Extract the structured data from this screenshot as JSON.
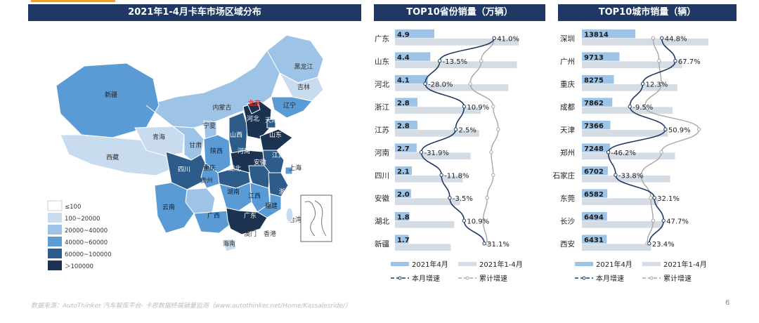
{
  "map_panel": {
    "title": "2021年1-4月卡车市场区域分布",
    "legend": [
      {
        "label": "≤100",
        "color": ""
      },
      {
        "label": "100~20000",
        "color": "#c9dcef"
      },
      {
        "label": "20000~40000",
        "color": "#9dc3e6"
      },
      {
        "label": "40000~60000",
        "color": "#5b9bd5"
      },
      {
        "label": "60000~100000",
        "color": "#2e5c8a"
      },
      {
        "label": "＞100000",
        "color": "#1b3350"
      }
    ],
    "regions": [
      {
        "name": "黑龙江",
        "tier": 2
      },
      {
        "name": "吉林",
        "tier": 1
      },
      {
        "name": "辽宁",
        "tier": 3
      },
      {
        "name": "内蒙古",
        "tier": 2
      },
      {
        "name": "新疆",
        "tier": 3
      },
      {
        "name": "西藏",
        "tier": 1
      },
      {
        "name": "青海",
        "tier": 1
      },
      {
        "name": "甘肃",
        "tier": 2
      },
      {
        "name": "宁夏",
        "tier": 2
      },
      {
        "name": "陕西",
        "tier": 3
      },
      {
        "name": "山西",
        "tier": 4
      },
      {
        "name": "河北",
        "tier": 5
      },
      {
        "name": "天津",
        "tier": 4
      },
      {
        "name": "山东",
        "tier": 5
      },
      {
        "name": "河南",
        "tier": 5
      },
      {
        "name": "江苏",
        "tier": 4
      },
      {
        "name": "安徽",
        "tier": 4
      },
      {
        "name": "湖北",
        "tier": 4
      },
      {
        "name": "四川",
        "tier": 4
      },
      {
        "name": "重庆",
        "tier": 3
      },
      {
        "name": "贵州",
        "tier": 2
      },
      {
        "name": "云南",
        "tier": 3
      },
      {
        "name": "广西",
        "tier": 3
      },
      {
        "name": "湖南",
        "tier": 3
      },
      {
        "name": "江西",
        "tier": 3
      },
      {
        "name": "浙江",
        "tier": 4
      },
      {
        "name": "福建",
        "tier": 3
      },
      {
        "name": "广东",
        "tier": 5
      },
      {
        "name": "海南",
        "tier": 1
      },
      {
        "name": "上海",
        "tier": 3
      },
      {
        "name": "北京",
        "tier": 5
      }
    ],
    "extra_labels": [
      "澳门",
      "香港",
      "台湾"
    ]
  },
  "chart_data": [
    {
      "type": "bar",
      "title": "TOP10省份销量（万辆）",
      "orientation": "horizontal",
      "categories": [
        "广东",
        "山东",
        "河北",
        "浙江",
        "江苏",
        "河南",
        "四川",
        "安徽",
        "湖北",
        "新疆"
      ],
      "series": [
        {
          "name": "2021年4月",
          "values": [
            4.9,
            4.4,
            4.1,
            2.8,
            2.8,
            2.7,
            2.1,
            2.0,
            1.8,
            1.7
          ],
          "color": "#9dc3e6"
        },
        {
          "name": "2021年1-4月",
          "values": [
            14.4,
            14.2,
            13.2,
            10.0,
            9.8,
            8.8,
            7.9,
            7.6,
            6.9,
            6.5
          ],
          "color": "#d6dce4"
        },
        {
          "name": "本月增速",
          "values": [
            41.0,
            -13.5,
            -28.0,
            10.9,
            2.5,
            -31.9,
            -11.8,
            -3.5,
            10.9,
            31.1
          ],
          "color": "#1f3864",
          "unit": "%"
        },
        {
          "name": "累计增速",
          "values": [
            41.0,
            28.0,
            17.0,
            40.0,
            45.0,
            38.0,
            40.0,
            34.0,
            30.0,
            34.0
          ],
          "color": "#a6a6a6",
          "unit": "%"
        }
      ],
      "bar_labels": [
        "4.9",
        "4.4",
        "4.1",
        "2.8",
        "2.8",
        "2.7",
        "2.1",
        "2.0",
        "1.8",
        "1.7"
      ],
      "growth_labels": [
        "41.0%",
        "-13.5%",
        "-28.0%",
        "10.9%",
        "2.5%",
        "-31.9%",
        "-11.8%",
        "-3.5%",
        "10.9%",
        "31.1%"
      ],
      "legend": [
        "2021年4月",
        "2021年1-4月",
        "本月增速",
        "累计增速"
      ]
    },
    {
      "type": "bar",
      "title": "TOP10城市销量（辆）",
      "orientation": "horizontal",
      "categories": [
        "深圳",
        "广州",
        "重庆",
        "成都",
        "天津",
        "郑州",
        "石家庄",
        "东莞",
        "长沙",
        "西安"
      ],
      "series": [
        {
          "name": "2021年4月",
          "values": [
            13814,
            9713,
            8275,
            7862,
            7366,
            7248,
            6702,
            6582,
            6494,
            6431
          ],
          "color": "#9dc3e6"
        },
        {
          "name": "2021年1-4月",
          "values": [
            53000,
            42000,
            40000,
            38000,
            36000,
            39000,
            37000,
            32000,
            34000,
            29000
          ],
          "color": "#d6dce4"
        },
        {
          "name": "本月增速",
          "values": [
            44.8,
            67.7,
            12.3,
            -9.5,
            50.9,
            -46.2,
            -33.8,
            32.1,
            47.7,
            23.4
          ],
          "color": "#1f3864",
          "unit": "%"
        },
        {
          "name": "累计增速",
          "values": [
            30.0,
            40.0,
            44.0,
            16.0,
            108.0,
            44.0,
            10.0,
            26.0,
            30.0,
            20.0
          ],
          "color": "#a6a6a6",
          "unit": "%"
        }
      ],
      "bar_labels": [
        "13814",
        "9713",
        "8275",
        "7862",
        "7366",
        "7248",
        "6702",
        "6582",
        "6494",
        "6431"
      ],
      "growth_labels": [
        "44.8%",
        "67.7%",
        "12.3%",
        "-9.5%",
        "50.9%",
        "-46.2%",
        "-33.8%",
        "32.1%",
        "47.7%",
        "23.4%"
      ],
      "legend": [
        "2021年4月",
        "2021年1-4月",
        "本月增速",
        "累计增速"
      ]
    }
  ],
  "footer": {
    "source": "数据来源：AutoThinker 汽车智库平台- 卡思数据终端销量监测（www.autothinker.net/Home/Kassalesride/）",
    "page_number": "6"
  },
  "colors": {
    "header": "#1f3864",
    "accent_dark": "#1f3864",
    "bar_month": "#9dc3e6",
    "bar_ytd": "#d6dce4"
  }
}
